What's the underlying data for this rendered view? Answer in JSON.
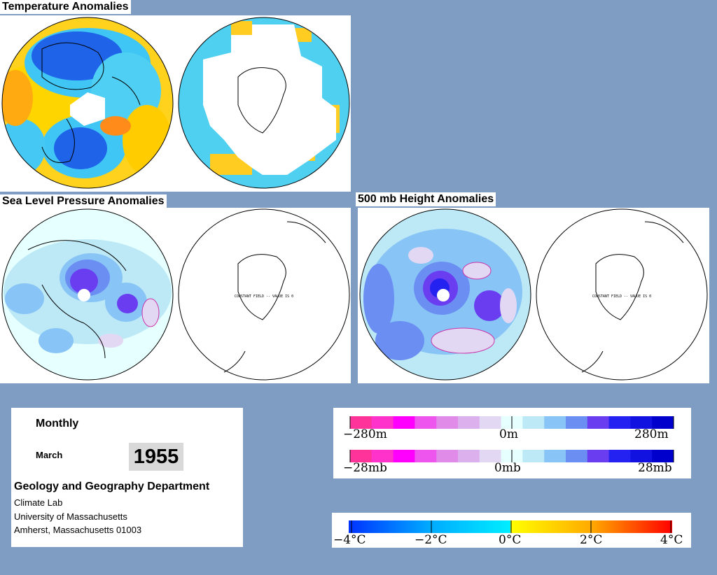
{
  "maps": {
    "temperature_title": "Temperature Anomalies",
    "slp_title": "Sea Level Pressure Anomalies",
    "height_title": "500 mb Height Anomalies",
    "constant_field_label": "CONSTANT FIELD -- VALUE IS 0"
  },
  "info": {
    "frequency": "Monthly",
    "month": "March",
    "year": "1955",
    "department": "Geology and Geography Department",
    "lab": "Climate Lab",
    "university": "University of Massachusetts",
    "address": "Amherst, Massachusetts 01003"
  },
  "legends": {
    "height": {
      "left": "−280m",
      "center": "0m",
      "right": "280m"
    },
    "pressure": {
      "left": "−28mb",
      "center": "0mb",
      "right": "28mb"
    },
    "temperature": {
      "t1": "−4°C",
      "t2": "−2°C",
      "t3": "0°C",
      "t4": "2°C",
      "t5": "4°C"
    }
  },
  "colors": {
    "background": "#7f9cc2",
    "anomaly_scale": [
      "#ff3399",
      "#ff33cc",
      "#ff00ff",
      "#ee55ee",
      "#e08be8",
      "#dcb0ec",
      "#e2d8f4",
      "#e6ffff",
      "#bde9f7",
      "#88c4f5",
      "#6b8ef2",
      "#6a3ef0",
      "#2422f0",
      "#1212e0",
      "#0000cc"
    ],
    "temperature_scale_cold": [
      "#0033ff",
      "#00aaff",
      "#00eeff"
    ],
    "temperature_scale_warm": [
      "#ffff00",
      "#ffaa00",
      "#ff0000"
    ]
  }
}
